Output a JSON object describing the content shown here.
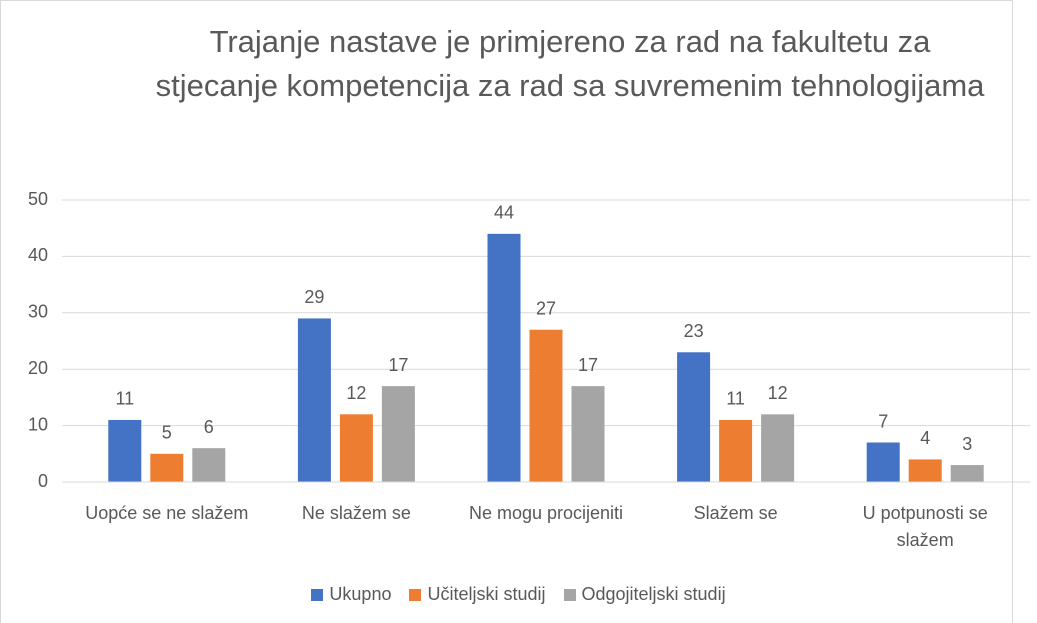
{
  "chart_data": {
    "type": "bar",
    "title": "Trajanje nastave je primjereno za rad na fakultetu za stjecanje kompetencija za rad sa suvremenim tehnologijama",
    "categories": [
      "Uopće se ne slažem",
      "Ne slažem se",
      "Ne mogu procijeniti",
      "Slažem se",
      "U potpunosti se slažem"
    ],
    "series": [
      {
        "name": "Ukupno",
        "color": "#4472c4",
        "values": [
          11,
          29,
          44,
          23,
          7
        ]
      },
      {
        "name": "Učiteljski studij",
        "color": "#ed7d31",
        "values": [
          5,
          12,
          27,
          11,
          4
        ]
      },
      {
        "name": "Odgojiteljski studij",
        "color": "#a5a5a5",
        "values": [
          6,
          17,
          17,
          12,
          3
        ]
      }
    ],
    "ylim": [
      0,
      50
    ],
    "yticks": [
      0,
      10,
      20,
      30,
      40,
      50
    ],
    "grid": true,
    "legend": "bottom"
  }
}
